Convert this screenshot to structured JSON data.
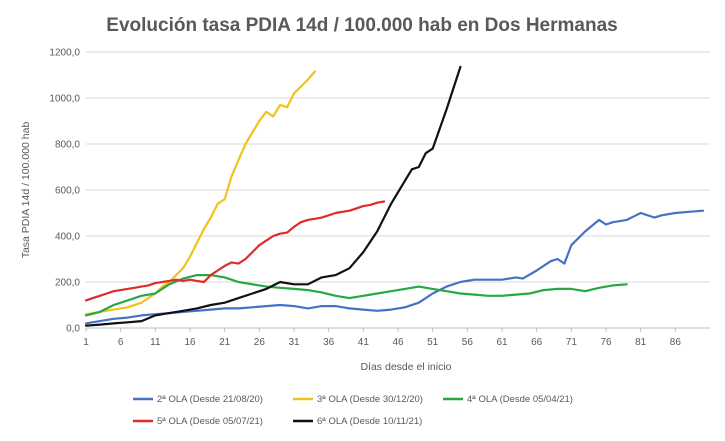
{
  "chart_data": {
    "type": "line",
    "title": "Evolución  tasa PDIA 14d / 100.000 hab en Dos Hermanas",
    "xlabel": "Días desde el inicio",
    "ylabel": "Tasa PDIA 14d / 100.000 hab",
    "xlim": [
      1,
      91
    ],
    "ylim": [
      0,
      1200
    ],
    "x_ticks": [
      1,
      6,
      11,
      16,
      21,
      26,
      31,
      36,
      41,
      46,
      51,
      56,
      61,
      66,
      71,
      76,
      81,
      86
    ],
    "y_ticks": [
      {
        "value": 0,
        "label": "0,0"
      },
      {
        "value": 200,
        "label": "200,0"
      },
      {
        "value": 400,
        "label": "400,0"
      },
      {
        "value": 600,
        "label": "600,0"
      },
      {
        "value": 800,
        "label": "800,0"
      },
      {
        "value": 1000,
        "label": "1000,0"
      },
      {
        "value": 1200,
        "label": "1200,0"
      }
    ],
    "grid": true,
    "legend_position": "bottom",
    "series": [
      {
        "name": "2ª OLA (Desde 21/08/20)",
        "color": "#4472c4",
        "x": [
          1,
          3,
          5,
          7,
          9,
          11,
          13,
          15,
          17,
          19,
          21,
          23,
          25,
          27,
          29,
          31,
          33,
          35,
          37,
          39,
          41,
          43,
          45,
          47,
          49,
          51,
          53,
          55,
          57,
          59,
          61,
          63,
          64,
          66,
          68,
          69,
          70,
          71,
          73,
          75,
          76,
          77,
          79,
          81,
          83,
          84,
          86,
          88,
          90
        ],
        "y": [
          20,
          30,
          40,
          45,
          55,
          60,
          65,
          70,
          75,
          80,
          85,
          85,
          90,
          95,
          100,
          95,
          85,
          95,
          95,
          85,
          80,
          75,
          80,
          90,
          110,
          150,
          180,
          200,
          210,
          210,
          210,
          220,
          215,
          250,
          290,
          300,
          280,
          360,
          420,
          470,
          450,
          460,
          470,
          500,
          480,
          490,
          500,
          505,
          510
        ]
      },
      {
        "name": "3ª OLA (Desde 30/12/20)",
        "color": "#f2c21b",
        "x": [
          1,
          3,
          5,
          7,
          9,
          11,
          12,
          13,
          14,
          15,
          16,
          17,
          18,
          19,
          20,
          21,
          22,
          23,
          24,
          25,
          26,
          27,
          28,
          29,
          30,
          31,
          32,
          33,
          34
        ],
        "y": [
          60,
          70,
          80,
          90,
          110,
          150,
          180,
          200,
          230,
          260,
          310,
          370,
          430,
          480,
          540,
          560,
          660,
          730,
          800,
          850,
          900,
          940,
          920,
          970,
          960,
          1020,
          1050,
          1080,
          1115
        ]
      },
      {
        "name": "4ª OLA (Desde 05/04/21)",
        "color": "#27a844",
        "x": [
          1,
          3,
          5,
          7,
          9,
          11,
          13,
          15,
          17,
          19,
          21,
          23,
          25,
          27,
          29,
          31,
          33,
          35,
          37,
          39,
          41,
          43,
          45,
          47,
          49,
          51,
          53,
          55,
          57,
          59,
          61,
          63,
          65,
          67,
          69,
          71,
          73,
          75,
          77,
          79
        ],
        "y": [
          55,
          70,
          100,
          120,
          140,
          150,
          190,
          215,
          230,
          230,
          220,
          200,
          190,
          180,
          175,
          170,
          165,
          155,
          140,
          130,
          140,
          150,
          160,
          170,
          180,
          170,
          160,
          150,
          145,
          140,
          140,
          145,
          150,
          165,
          170,
          170,
          160,
          175,
          185,
          190
        ]
      },
      {
        "name": "5ª OLA (Desde 05/07/21)",
        "color": "#e02b2b",
        "x": [
          1,
          2,
          3,
          4,
          5,
          6,
          7,
          8,
          9,
          10,
          11,
          12,
          13,
          14,
          15,
          16,
          17,
          18,
          19,
          20,
          21,
          22,
          23,
          24,
          25,
          26,
          27,
          28,
          29,
          30,
          31,
          32,
          33,
          34,
          35,
          36,
          37,
          38,
          39,
          40,
          41,
          42,
          43,
          44
        ],
        "y": [
          120,
          130,
          140,
          150,
          160,
          165,
          170,
          175,
          180,
          185,
          195,
          200,
          205,
          210,
          205,
          210,
          205,
          200,
          230,
          250,
          270,
          285,
          280,
          300,
          330,
          360,
          380,
          400,
          410,
          415,
          440,
          460,
          470,
          475,
          480,
          490,
          500,
          505,
          510,
          520,
          530,
          535,
          545,
          550
        ]
      },
      {
        "name": "6ª OLA (Desde 10/11/21)",
        "color": "#111111",
        "x": [
          1,
          3,
          5,
          7,
          9,
          11,
          13,
          15,
          17,
          19,
          21,
          23,
          25,
          27,
          29,
          31,
          33,
          35,
          37,
          39,
          41,
          43,
          45,
          47,
          48,
          49,
          50,
          51,
          53,
          55
        ],
        "y": [
          10,
          15,
          20,
          25,
          30,
          55,
          65,
          75,
          85,
          100,
          110,
          130,
          150,
          170,
          200,
          190,
          190,
          220,
          230,
          260,
          330,
          420,
          540,
          640,
          690,
          700,
          760,
          780,
          950,
          1135
        ]
      }
    ]
  }
}
